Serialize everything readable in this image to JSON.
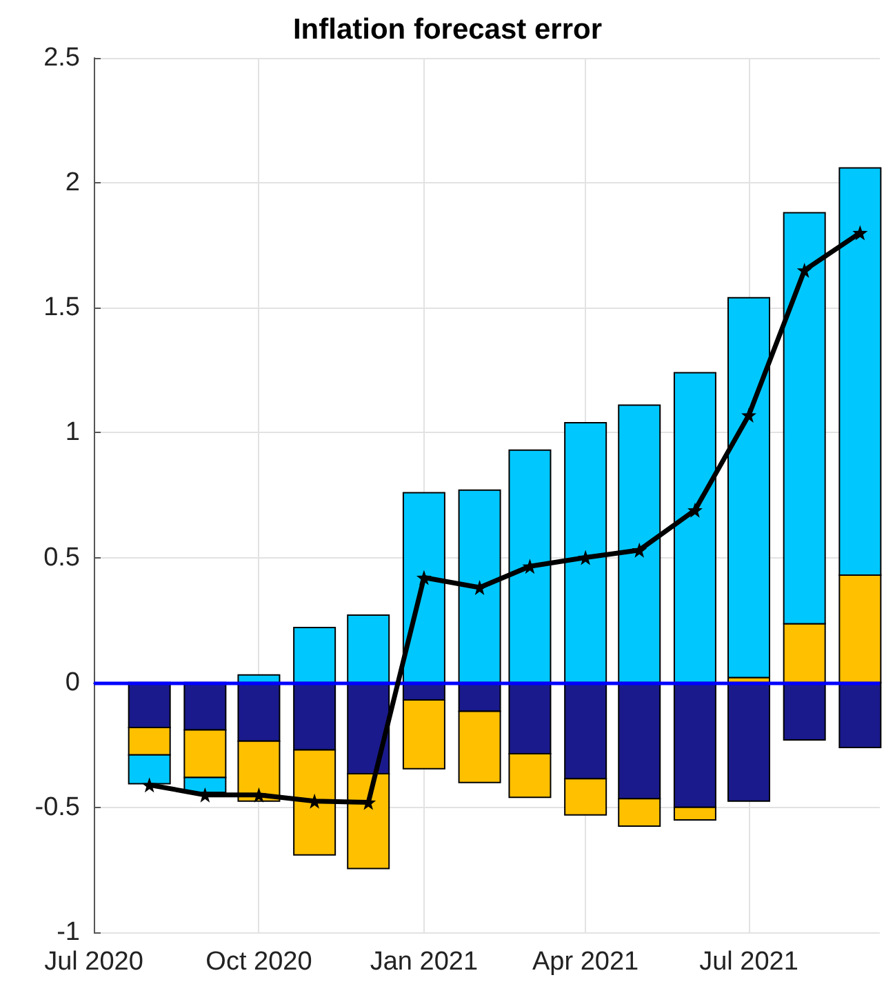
{
  "chart_data": {
    "type": "bar",
    "title": "Inflation forecast error",
    "stacked": true,
    "x": [
      "2020-08",
      "2020-09",
      "2020-10",
      "2020-11",
      "2020-12",
      "2021-01",
      "2021-02",
      "2021-03",
      "2021-04",
      "2021-05",
      "2021-06",
      "2021-07",
      "2021-08",
      "2021-09"
    ],
    "series": [
      {
        "color": "#1a1a8c",
        "values": [
          -0.18,
          -0.19,
          -0.235,
          -0.27,
          -0.365,
          -0.07,
          -0.115,
          -0.285,
          -0.385,
          -0.465,
          -0.5,
          -0.475,
          -0.23,
          -0.26
        ]
      },
      {
        "color": "#ffc000",
        "values": [
          -0.11,
          -0.19,
          -0.24,
          -0.42,
          -0.38,
          -0.275,
          -0.285,
          -0.175,
          -0.145,
          -0.11,
          -0.05,
          0.02,
          0.235,
          0.43
        ]
      },
      {
        "color": "#00c8ff",
        "values": [
          -0.115,
          -0.06,
          0.03,
          0.22,
          0.27,
          0.76,
          0.77,
          0.93,
          1.04,
          1.11,
          1.24,
          1.52,
          1.645,
          1.63
        ]
      },
      {
        "type": "line",
        "color": "#000000",
        "marker": "star",
        "line_style": "solid",
        "values": [
          -0.41,
          -0.45,
          -0.45,
          -0.475,
          -0.48,
          0.42,
          0.38,
          0.465,
          0.5,
          0.53,
          0.69,
          1.07,
          1.65,
          1.8
        ]
      }
    ],
    "xlim": [
      "2020-07",
      "2021-09-12"
    ],
    "xticks": [
      {
        "value": "2020-07",
        "label": "Jul 2020"
      },
      {
        "value": "2020-10",
        "label": "Oct 2020"
      },
      {
        "value": "2021-01",
        "label": "Jan 2021"
      },
      {
        "value": "2021-04",
        "label": "Apr 2021"
      },
      {
        "value": "2021-07",
        "label": "Jul 2021"
      }
    ],
    "ylim": [
      -1,
      2.5
    ],
    "yticks": [
      -1,
      -0.5,
      0,
      0.5,
      1,
      1.5,
      2,
      2.5
    ],
    "ref_lines": [
      {
        "axis": "y",
        "value": 0,
        "color": "#0000ff"
      }
    ],
    "grid": true
  }
}
